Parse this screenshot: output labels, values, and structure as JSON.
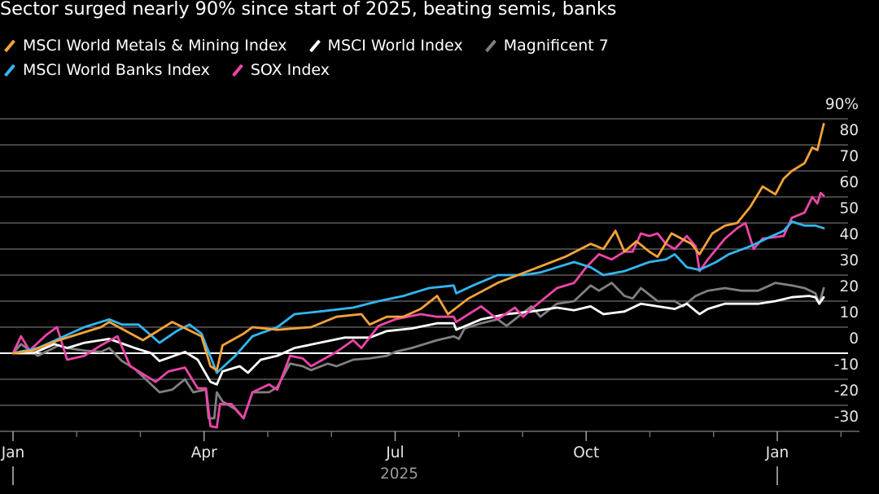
{
  "chart_data": {
    "type": "line",
    "title": "Sector surged nearly 90% since start of 2025, beating semis, banks",
    "xlabel": "2025",
    "ylabel": "%",
    "x_unit": "months since Jan 1, 2025",
    "ylim": [
      -30,
      90
    ],
    "yticks": [
      {
        "value": 90,
        "label": "90%"
      },
      {
        "value": 80,
        "label": "80"
      },
      {
        "value": 70,
        "label": "70"
      },
      {
        "value": 60,
        "label": "60"
      },
      {
        "value": 50,
        "label": "50"
      },
      {
        "value": 40,
        "label": "40"
      },
      {
        "value": 30,
        "label": "30"
      },
      {
        "value": 20,
        "label": "20"
      },
      {
        "value": 10,
        "label": "10"
      },
      {
        "value": 0,
        "label": "0"
      },
      {
        "value": -10,
        "label": "-10"
      },
      {
        "value": -20,
        "label": "-20"
      },
      {
        "value": -30,
        "label": "-30"
      }
    ],
    "xticks": [
      {
        "value": 0,
        "label": "Jan"
      },
      {
        "value": 3,
        "label": "Apr"
      },
      {
        "value": 6,
        "label": "Jul"
      },
      {
        "value": 9,
        "label": "Oct"
      },
      {
        "value": 12,
        "label": "Jan"
      }
    ],
    "minor_xticks": [
      1,
      2,
      4,
      5,
      7,
      8,
      10,
      11,
      13
    ],
    "year_label": {
      "value": 6,
      "label": "2025"
    },
    "year_dividers": [
      0,
      12
    ],
    "grid": true,
    "legend_placement": "top-left",
    "series": [
      {
        "name": "Magnificent 7",
        "color": "#808080",
        "points": [
          [
            0,
            0
          ],
          [
            0.125,
            3.5
          ],
          [
            0.39,
            -1
          ],
          [
            0.72,
            3
          ],
          [
            0.85,
            2
          ],
          [
            1.12,
            1
          ],
          [
            1.38,
            0.5
          ],
          [
            1.51,
            2
          ],
          [
            1.71,
            -3
          ],
          [
            1.91,
            -6
          ],
          [
            2.17,
            -12
          ],
          [
            2.3,
            -15
          ],
          [
            2.5,
            -14
          ],
          [
            2.7,
            -10
          ],
          [
            2.83,
            -15
          ],
          [
            3.03,
            -14
          ],
          [
            3.07,
            -25
          ],
          [
            3.16,
            -25
          ],
          [
            3.2,
            -15
          ],
          [
            3.29,
            -18.5
          ],
          [
            3.49,
            -21.5
          ],
          [
            3.62,
            -25
          ],
          [
            3.76,
            -15
          ],
          [
            4.02,
            -15
          ],
          [
            4.15,
            -13
          ],
          [
            4.35,
            -4
          ],
          [
            4.55,
            -5
          ],
          [
            4.68,
            -6.5
          ],
          [
            4.94,
            -4
          ],
          [
            5.08,
            -5
          ],
          [
            5.34,
            -2.5
          ],
          [
            5.6,
            -2
          ],
          [
            5.87,
            -1
          ],
          [
            6.0,
            0.5
          ],
          [
            6.26,
            2
          ],
          [
            6.66,
            5
          ],
          [
            6.92,
            6.5
          ],
          [
            7.0,
            5.5
          ],
          [
            7.09,
            9.5
          ],
          [
            7.35,
            11.5
          ],
          [
            7.61,
            13
          ],
          [
            7.75,
            10.5
          ],
          [
            8.14,
            18
          ],
          [
            8.28,
            14
          ],
          [
            8.54,
            19
          ],
          [
            8.81,
            20
          ],
          [
            9.07,
            26
          ],
          [
            9.2,
            24
          ],
          [
            9.4,
            27
          ],
          [
            9.6,
            22
          ],
          [
            9.73,
            21
          ],
          [
            9.86,
            25
          ],
          [
            10.12,
            20
          ],
          [
            10.39,
            20
          ],
          [
            10.52,
            18
          ],
          [
            10.72,
            22
          ],
          [
            10.91,
            24
          ],
          [
            11.18,
            25
          ],
          [
            11.44,
            24
          ],
          [
            11.7,
            24
          ],
          [
            11.97,
            27
          ],
          [
            12.23,
            26
          ],
          [
            12.43,
            25
          ],
          [
            12.6,
            23
          ],
          [
            12.66,
            19
          ],
          [
            12.73,
            25
          ]
        ]
      },
      {
        "name": "MSCI World Index",
        "color": "#ffffff",
        "points": [
          [
            0,
            0
          ],
          [
            0.32,
            0
          ],
          [
            0.46,
            1.5
          ],
          [
            0.65,
            3.5
          ],
          [
            0.85,
            2
          ],
          [
            1.12,
            4
          ],
          [
            1.51,
            5.5
          ],
          [
            1.91,
            2
          ],
          [
            2.17,
            0
          ],
          [
            2.3,
            -3
          ],
          [
            2.7,
            0.5
          ],
          [
            2.9,
            -2.5
          ],
          [
            3.1,
            -11
          ],
          [
            3.2,
            -12
          ],
          [
            3.29,
            -7
          ],
          [
            3.56,
            -5
          ],
          [
            3.69,
            -7.5
          ],
          [
            3.89,
            -2.5
          ],
          [
            4.15,
            -1
          ],
          [
            4.42,
            2
          ],
          [
            4.81,
            4
          ],
          [
            5.21,
            6
          ],
          [
            5.6,
            6
          ],
          [
            5.87,
            8.5
          ],
          [
            6.26,
            9.5
          ],
          [
            6.66,
            11.5
          ],
          [
            6.92,
            11.5
          ],
          [
            6.96,
            9
          ],
          [
            7.35,
            13
          ],
          [
            7.75,
            15
          ],
          [
            8.14,
            16
          ],
          [
            8.54,
            17.5
          ],
          [
            8.81,
            16.5
          ],
          [
            9.07,
            18
          ],
          [
            9.27,
            15
          ],
          [
            9.6,
            16
          ],
          [
            9.86,
            19
          ],
          [
            10.12,
            18
          ],
          [
            10.39,
            17
          ],
          [
            10.58,
            19
          ],
          [
            10.78,
            15
          ],
          [
            10.91,
            17
          ],
          [
            11.18,
            19
          ],
          [
            11.44,
            19
          ],
          [
            11.7,
            19
          ],
          [
            11.97,
            20
          ],
          [
            12.23,
            21.5
          ],
          [
            12.5,
            22
          ],
          [
            12.6,
            21.5
          ],
          [
            12.66,
            19
          ],
          [
            12.73,
            21.5
          ]
        ]
      },
      {
        "name": "SOX Index",
        "color": "#ee45a8",
        "points": [
          [
            0,
            0
          ],
          [
            0.125,
            6.5
          ],
          [
            0.26,
            1
          ],
          [
            0.52,
            7
          ],
          [
            0.69,
            10
          ],
          [
            0.85,
            -2.5
          ],
          [
            1.12,
            -1
          ],
          [
            1.38,
            3
          ],
          [
            1.64,
            6.5
          ],
          [
            1.84,
            -5
          ],
          [
            2.04,
            -8
          ],
          [
            2.24,
            -11
          ],
          [
            2.44,
            -7
          ],
          [
            2.7,
            -5.5
          ],
          [
            2.9,
            -13.5
          ],
          [
            3.03,
            -13.5
          ],
          [
            3.1,
            -28
          ],
          [
            3.2,
            -28.5
          ],
          [
            3.25,
            -19.5
          ],
          [
            3.43,
            -19.5
          ],
          [
            3.62,
            -25
          ],
          [
            3.76,
            -15
          ],
          [
            4.02,
            -12
          ],
          [
            4.15,
            -14
          ],
          [
            4.35,
            -1
          ],
          [
            4.55,
            -2
          ],
          [
            4.68,
            -5
          ],
          [
            5.08,
            0.5
          ],
          [
            5.34,
            5
          ],
          [
            5.47,
            2
          ],
          [
            5.74,
            10.5
          ],
          [
            6.0,
            13
          ],
          [
            6.4,
            15
          ],
          [
            6.66,
            14
          ],
          [
            6.92,
            14
          ],
          [
            6.96,
            12
          ],
          [
            7.35,
            18
          ],
          [
            7.61,
            13
          ],
          [
            7.88,
            17.5
          ],
          [
            8.01,
            14
          ],
          [
            8.14,
            17
          ],
          [
            8.54,
            25
          ],
          [
            8.81,
            27
          ],
          [
            9.0,
            33
          ],
          [
            9.2,
            38
          ],
          [
            9.4,
            36
          ],
          [
            9.6,
            39
          ],
          [
            9.73,
            39
          ],
          [
            9.86,
            46
          ],
          [
            9.99,
            45
          ],
          [
            10.12,
            46
          ],
          [
            10.25,
            42
          ],
          [
            10.39,
            40
          ],
          [
            10.58,
            45
          ],
          [
            10.72,
            41
          ],
          [
            10.78,
            31.5
          ],
          [
            10.91,
            36
          ],
          [
            11.18,
            44
          ],
          [
            11.37,
            48
          ],
          [
            11.5,
            50
          ],
          [
            11.63,
            40
          ],
          [
            11.77,
            44
          ],
          [
            12.1,
            45
          ],
          [
            12.23,
            52
          ],
          [
            12.43,
            54
          ],
          [
            12.55,
            60
          ],
          [
            12.63,
            57.5
          ],
          [
            12.68,
            61.5
          ],
          [
            12.73,
            60.5
          ]
        ]
      },
      {
        "name": "MSCI World Banks Index",
        "color": "#33b6f0",
        "points": [
          [
            0,
            0
          ],
          [
            0.39,
            2
          ],
          [
            1.12,
            10
          ],
          [
            1.51,
            13
          ],
          [
            1.71,
            11
          ],
          [
            1.97,
            11
          ],
          [
            2.3,
            4
          ],
          [
            2.57,
            8.5
          ],
          [
            2.77,
            11
          ],
          [
            2.96,
            7.5
          ],
          [
            3.2,
            -7.5
          ],
          [
            3.49,
            -1
          ],
          [
            3.76,
            6.5
          ],
          [
            4.15,
            10
          ],
          [
            4.42,
            15
          ],
          [
            4.81,
            16
          ],
          [
            5.34,
            17.5
          ],
          [
            5.74,
            20
          ],
          [
            6.13,
            22
          ],
          [
            6.53,
            25
          ],
          [
            6.92,
            26
          ],
          [
            6.96,
            23
          ],
          [
            7.22,
            26
          ],
          [
            7.61,
            30
          ],
          [
            8.01,
            30
          ],
          [
            8.28,
            31
          ],
          [
            8.54,
            33
          ],
          [
            8.81,
            35
          ],
          [
            9.07,
            33
          ],
          [
            9.27,
            30
          ],
          [
            9.6,
            31.5
          ],
          [
            9.99,
            35
          ],
          [
            10.25,
            36
          ],
          [
            10.39,
            38
          ],
          [
            10.58,
            33
          ],
          [
            10.78,
            32
          ],
          [
            11.04,
            35
          ],
          [
            11.24,
            38
          ],
          [
            11.57,
            41
          ],
          [
            11.83,
            44
          ],
          [
            12.1,
            47
          ],
          [
            12.23,
            50.5
          ],
          [
            12.43,
            49
          ],
          [
            12.6,
            49
          ],
          [
            12.73,
            48
          ]
        ]
      },
      {
        "name": "MSCI World Metals & Mining Index",
        "color": "#f5a33a",
        "points": [
          [
            0,
            0
          ],
          [
            0.3,
            1
          ],
          [
            0.72,
            5
          ],
          [
            1.38,
            10
          ],
          [
            1.51,
            12
          ],
          [
            2.04,
            5
          ],
          [
            2.5,
            12
          ],
          [
            2.96,
            6.5
          ],
          [
            3.1,
            -5
          ],
          [
            3.2,
            -6.5
          ],
          [
            3.29,
            3
          ],
          [
            3.62,
            7.5
          ],
          [
            3.76,
            10
          ],
          [
            4.15,
            9
          ],
          [
            4.68,
            10
          ],
          [
            5.08,
            14
          ],
          [
            5.47,
            15
          ],
          [
            5.6,
            11
          ],
          [
            5.87,
            14
          ],
          [
            6.13,
            14
          ],
          [
            6.4,
            17
          ],
          [
            6.66,
            22
          ],
          [
            6.83,
            15
          ],
          [
            7.15,
            21
          ],
          [
            7.61,
            27
          ],
          [
            8.14,
            32
          ],
          [
            8.67,
            37
          ],
          [
            9.07,
            42
          ],
          [
            9.27,
            40
          ],
          [
            9.46,
            47
          ],
          [
            9.6,
            39
          ],
          [
            9.79,
            43
          ],
          [
            9.99,
            39
          ],
          [
            10.12,
            37
          ],
          [
            10.34,
            46
          ],
          [
            10.65,
            42
          ],
          [
            10.78,
            38
          ],
          [
            10.98,
            46
          ],
          [
            11.18,
            49
          ],
          [
            11.37,
            50
          ],
          [
            11.57,
            56
          ],
          [
            11.77,
            64
          ],
          [
            11.97,
            61
          ],
          [
            12.1,
            67
          ],
          [
            12.23,
            70
          ],
          [
            12.43,
            73
          ],
          [
            12.55,
            79
          ],
          [
            12.63,
            78
          ],
          [
            12.73,
            88
          ]
        ]
      }
    ],
    "legend": [
      {
        "label": "MSCI World Metals & Mining Index",
        "color": "#f5a33a"
      },
      {
        "label": "MSCI World Index",
        "color": "#ffffff"
      },
      {
        "label": "Magnificent 7",
        "color": "#808080"
      },
      {
        "label": "MSCI World Banks Index",
        "color": "#33b6f0"
      },
      {
        "label": "SOX Index",
        "color": "#ee45a8"
      }
    ]
  }
}
